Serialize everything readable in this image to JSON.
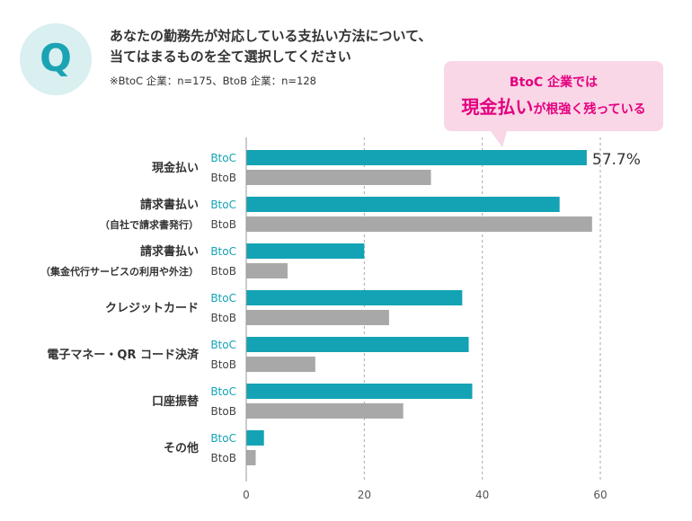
{
  "badge": {
    "letter": "Q"
  },
  "question": {
    "line1": "あなたの勤務先が対応している支払い方法について、",
    "line2": "当てはまるものを全て選択してください"
  },
  "sample_note": "※BtoC 企業：n=175、BtoB 企業：n=128",
  "callout": {
    "line1": "BtoC 企業では",
    "emphasis": "現金払い",
    "rest": "が根強く残っている"
  },
  "colors": {
    "btoc": "#13a3b5",
    "btob": "#a8a8a8",
    "accent": "#e4007f",
    "badge_bg": "#d9eff0"
  },
  "chart_data": {
    "type": "bar",
    "orientation": "horizontal",
    "categories": [
      {
        "label": "現金払い",
        "sublabel": ""
      },
      {
        "label": "請求書払い",
        "sublabel": "（自社で請求書発行）"
      },
      {
        "label": "請求書払い",
        "sublabel": "（集金代行サービスの利用や外注）"
      },
      {
        "label": "クレジットカード",
        "sublabel": ""
      },
      {
        "label": "電子マネー・QR コード決済",
        "sublabel": ""
      },
      {
        "label": "口座振替",
        "sublabel": ""
      },
      {
        "label": "その他",
        "sublabel": ""
      }
    ],
    "series": [
      {
        "name": "BtoC",
        "values": [
          57.7,
          53.1,
          20.0,
          36.6,
          37.7,
          38.3,
          3.0
        ]
      },
      {
        "name": "BtoB",
        "values": [
          31.3,
          58.6,
          7.0,
          24.2,
          11.7,
          26.6,
          1.6
        ]
      }
    ],
    "data_label": {
      "text": "57.7%",
      "series": 0,
      "index": 0
    },
    "xlim": [
      0,
      60
    ],
    "xticks": [
      0,
      20,
      40,
      60
    ],
    "grid": true
  }
}
